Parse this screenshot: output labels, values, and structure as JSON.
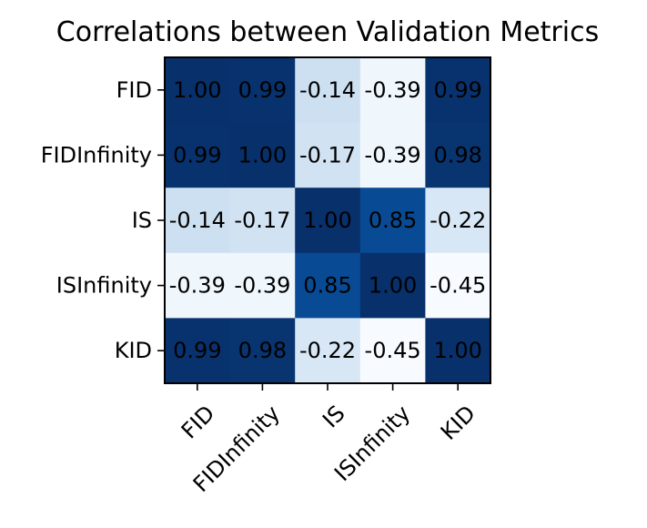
{
  "chart_data": {
    "type": "heatmap",
    "title": "Correlations between Validation Metrics",
    "row_labels": [
      "FID",
      "FIDInfinity",
      "IS",
      "ISInfinity",
      "KID"
    ],
    "col_labels": [
      "FID",
      "FIDInfinity",
      "IS",
      "ISInfinity",
      "KID"
    ],
    "values": [
      [
        1.0,
        0.99,
        -0.14,
        -0.39,
        0.99
      ],
      [
        0.99,
        1.0,
        -0.17,
        -0.39,
        0.98
      ],
      [
        -0.14,
        -0.17,
        1.0,
        0.85,
        -0.22
      ],
      [
        -0.39,
        -0.39,
        0.85,
        1.0,
        -0.45
      ],
      [
        0.99,
        0.98,
        -0.22,
        -0.45,
        1.0
      ]
    ],
    "value_format": "2 decimals",
    "colormap": "Blues",
    "color_range": [
      -0.45,
      1.0
    ],
    "grid": false,
    "xtick_rotation": 45
  }
}
